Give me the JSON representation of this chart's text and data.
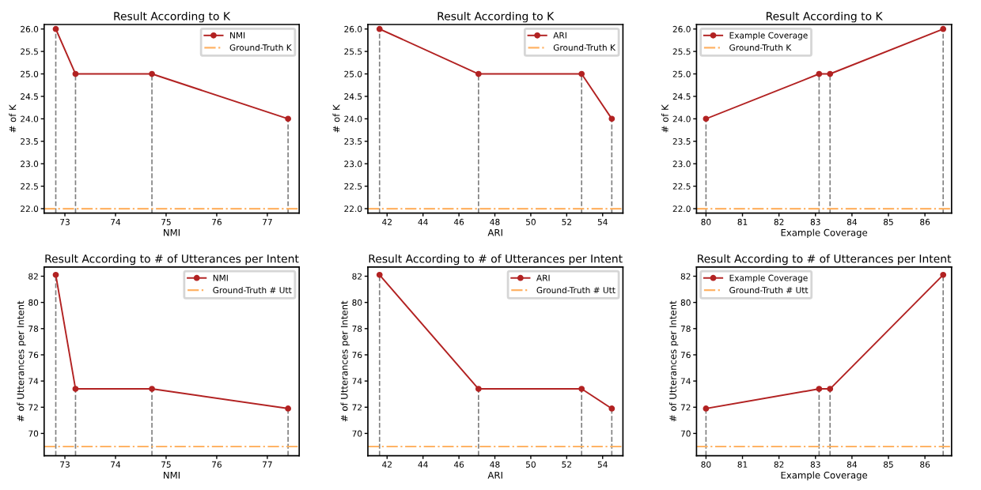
{
  "chart_data": [
    {
      "type": "line",
      "title": "Result According to K",
      "xlabel": "NMI",
      "ylabel": "# of K",
      "marker": "circle",
      "legend": "top right",
      "grid": false,
      "xlim": [
        72.59,
        77.63
      ],
      "xticks": [
        73,
        74,
        75,
        76,
        77
      ],
      "ylim": [
        21.9,
        26.1
      ],
      "yticks": [
        {
          "value": 22,
          "label": "22.0"
        },
        {
          "value": 22.5,
          "label": "22.5"
        },
        {
          "value": 23,
          "label": "23.0"
        },
        {
          "value": 23.5,
          "label": "23.5"
        },
        {
          "value": 24,
          "label": "24.0"
        },
        {
          "value": 24.5,
          "label": "24.5"
        },
        {
          "value": 25,
          "label": "25.0"
        },
        {
          "value": 25.5,
          "label": "25.5"
        },
        {
          "value": 26,
          "label": "26.0"
        }
      ],
      "series": [
        {
          "name": "NMI",
          "color": "#b22222",
          "x": [
            72.82,
            73.21,
            74.72,
            77.41
          ],
          "values": [
            26,
            25,
            25,
            24
          ],
          "errors": [
            [
              21.9,
              26
            ],
            [
              21.9,
              25
            ],
            [
              21.9,
              25
            ],
            [
              21.9,
              24
            ]
          ]
        }
      ],
      "ref_lines": [
        {
          "axis": "y",
          "value": 22,
          "label": "Ground-Truth K",
          "color": "#ffb366",
          "line_style": "dashdot"
        }
      ]
    },
    {
      "type": "line",
      "title": "Result According to K",
      "xlabel": "ARI",
      "ylabel": "# of K",
      "marker": "circle",
      "legend": "top right",
      "grid": false,
      "xlim": [
        40.93,
        55.13
      ],
      "xticks": [
        42,
        44,
        46,
        48,
        50,
        52,
        54
      ],
      "ylim": [
        21.9,
        26.1
      ],
      "yticks": [
        {
          "value": 22,
          "label": "22.0"
        },
        {
          "value": 22.5,
          "label": "22.5"
        },
        {
          "value": 23,
          "label": "23.0"
        },
        {
          "value": 23.5,
          "label": "23.5"
        },
        {
          "value": 24,
          "label": "24.0"
        },
        {
          "value": 24.5,
          "label": "24.5"
        },
        {
          "value": 25,
          "label": "25.0"
        },
        {
          "value": 25.5,
          "label": "25.5"
        },
        {
          "value": 26,
          "label": "26.0"
        }
      ],
      "series": [
        {
          "name": "ARI",
          "color": "#b22222",
          "x": [
            41.58,
            47.09,
            52.83,
            54.51
          ],
          "values": [
            26,
            25,
            25,
            24
          ],
          "errors": [
            [
              21.9,
              26
            ],
            [
              21.9,
              25
            ],
            [
              21.9,
              25
            ],
            [
              21.9,
              24
            ]
          ]
        }
      ],
      "ref_lines": [
        {
          "axis": "y",
          "value": 22,
          "label": "Ground-Truth K",
          "color": "#ffb366",
          "line_style": "dashdot"
        }
      ]
    },
    {
      "type": "line",
      "title": "Result According to K",
      "xlabel": "Example Coverage",
      "ylabel": "# of K",
      "marker": "circle",
      "legend": "top left",
      "grid": false,
      "xlim": [
        79.74,
        86.73
      ],
      "xticks": [
        80,
        81,
        82,
        83,
        84,
        85,
        86
      ],
      "ylim": [
        21.9,
        26.1
      ],
      "yticks": [
        {
          "value": 22,
          "label": "22.0"
        },
        {
          "value": 22.5,
          "label": "22.5"
        },
        {
          "value": 23,
          "label": "23.0"
        },
        {
          "value": 23.5,
          "label": "23.5"
        },
        {
          "value": 24,
          "label": "24.0"
        },
        {
          "value": 24.5,
          "label": "24.5"
        },
        {
          "value": 25,
          "label": "25.0"
        },
        {
          "value": 25.5,
          "label": "25.5"
        },
        {
          "value": 26,
          "label": "26.0"
        }
      ],
      "series": [
        {
          "name": "Example Coverage",
          "color": "#b22222",
          "x": [
            80.0,
            83.1,
            83.4,
            86.5
          ],
          "values": [
            24,
            25,
            25,
            26
          ],
          "errors": [
            [
              21.9,
              24
            ],
            [
              21.9,
              25
            ],
            [
              21.9,
              25
            ],
            [
              21.9,
              26
            ]
          ]
        }
      ],
      "ref_lines": [
        {
          "axis": "y",
          "value": 22,
          "label": "Ground-Truth K",
          "color": "#ffb366",
          "line_style": "dashdot"
        }
      ]
    },
    {
      "type": "line",
      "title": "Result According to # of Utterances per Intent",
      "xlabel": "NMI",
      "ylabel": "# of Utterances per Intent",
      "marker": "circle",
      "legend": "top right",
      "grid": false,
      "xlim": [
        72.59,
        77.63
      ],
      "xticks": [
        73,
        74,
        75,
        76,
        77
      ],
      "ylim": [
        68.3,
        82.7
      ],
      "yticks": [
        70,
        72,
        74,
        76,
        78,
        80,
        82
      ],
      "series": [
        {
          "name": "NMI",
          "color": "#b22222",
          "x": [
            72.82,
            73.21,
            74.72,
            77.41
          ],
          "values": [
            82.1,
            73.4,
            73.4,
            71.9
          ],
          "errors": [
            [
              68.3,
              82.1
            ],
            [
              68.3,
              73.4
            ],
            [
              68.3,
              73.4
            ],
            [
              68.3,
              71.9
            ]
          ]
        }
      ],
      "ref_lines": [
        {
          "axis": "y",
          "value": 69,
          "label": "Ground-Truth # Utt",
          "color": "#ffb366",
          "line_style": "dashdot"
        }
      ]
    },
    {
      "type": "line",
      "title": "Result According to # of Utterances per Intent",
      "xlabel": "ARI",
      "ylabel": "# of Utterances per Intent",
      "marker": "circle",
      "legend": "top right",
      "grid": false,
      "xlim": [
        40.93,
        55.13
      ],
      "xticks": [
        42,
        44,
        46,
        48,
        50,
        52,
        54
      ],
      "ylim": [
        68.3,
        82.7
      ],
      "yticks": [
        70,
        72,
        74,
        76,
        78,
        80,
        82
      ],
      "series": [
        {
          "name": "ARI",
          "color": "#b22222",
          "x": [
            41.58,
            47.09,
            52.83,
            54.51
          ],
          "values": [
            82.1,
            73.4,
            73.4,
            71.9
          ],
          "errors": [
            [
              68.3,
              82.1
            ],
            [
              68.3,
              73.4
            ],
            [
              68.3,
              73.4
            ],
            [
              68.3,
              71.9
            ]
          ]
        }
      ],
      "ref_lines": [
        {
          "axis": "y",
          "value": 69,
          "label": "Ground-Truth # Utt",
          "color": "#ffb366",
          "line_style": "dashdot"
        }
      ]
    },
    {
      "type": "line",
      "title": "Result According to # of Utterances per Intent",
      "xlabel": "Example Coverage",
      "ylabel": "# of Utterances per Intent",
      "marker": "circle",
      "legend": "top left",
      "grid": false,
      "xlim": [
        79.74,
        86.73
      ],
      "xticks": [
        80,
        81,
        82,
        83,
        84,
        85,
        86
      ],
      "ylim": [
        68.3,
        82.7
      ],
      "yticks": [
        70,
        72,
        74,
        76,
        78,
        80,
        82
      ],
      "series": [
        {
          "name": "Example Coverage",
          "color": "#b22222",
          "x": [
            80.0,
            83.1,
            83.4,
            86.5
          ],
          "values": [
            71.9,
            73.4,
            73.4,
            82.1
          ],
          "errors": [
            [
              68.3,
              71.9
            ],
            [
              68.3,
              73.4
            ],
            [
              68.3,
              73.4
            ],
            [
              68.3,
              82.1
            ]
          ]
        }
      ],
      "ref_lines": [
        {
          "axis": "y",
          "value": 69,
          "label": "Ground-Truth # Utt",
          "color": "#ffb366",
          "line_style": "dashdot"
        }
      ]
    }
  ]
}
